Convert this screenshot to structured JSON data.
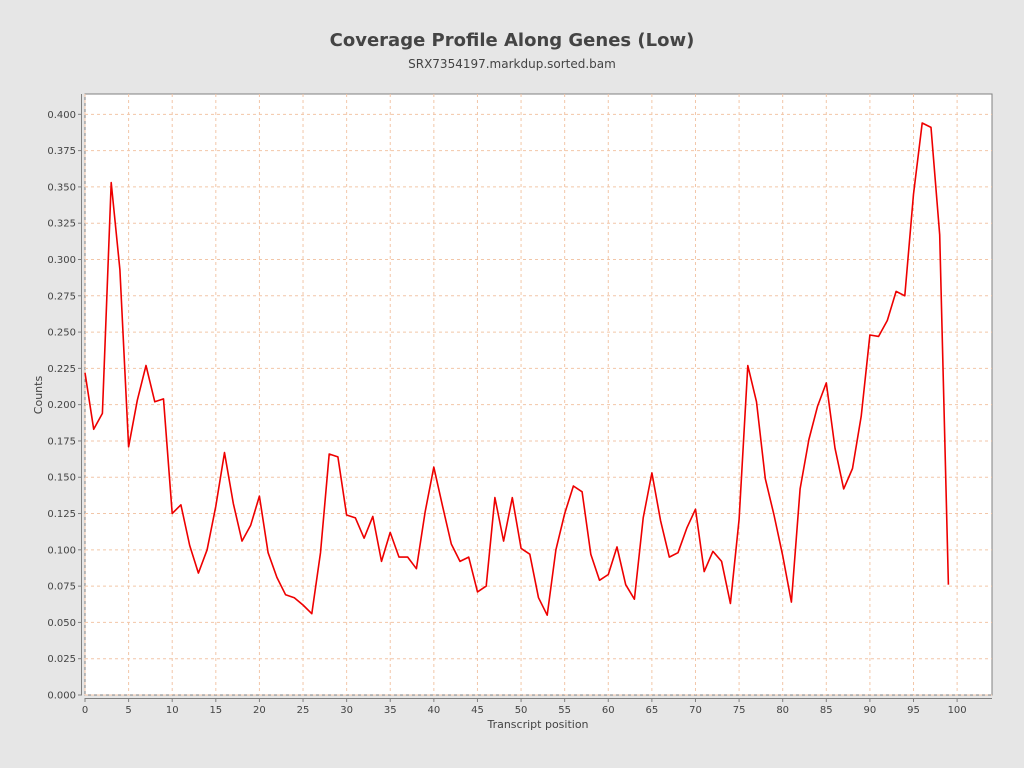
{
  "chart_data": {
    "type": "line",
    "title": "Coverage Profile Along Genes (Low)",
    "subtitle": "SRX7354197.markdup.sorted.bam",
    "xlabel": "Transcript position",
    "ylabel": "Counts",
    "xlim": [
      0,
      104
    ],
    "ylim": [
      0,
      0.414
    ],
    "xticks": [
      0,
      5,
      10,
      15,
      20,
      25,
      30,
      35,
      40,
      45,
      50,
      55,
      60,
      65,
      70,
      75,
      80,
      85,
      90,
      95,
      100
    ],
    "yticks": [
      "0.000",
      "0.025",
      "0.050",
      "0.075",
      "0.100",
      "0.125",
      "0.150",
      "0.175",
      "0.200",
      "0.225",
      "0.250",
      "0.275",
      "0.300",
      "0.325",
      "0.350",
      "0.375",
      "0.400"
    ],
    "grid": true,
    "colors": {
      "line": "#ee0000",
      "grid": "#f2c6a8",
      "plot_background": "#ffffff",
      "page_background": "#e6e6e6",
      "axis": "#808080",
      "text": "#444444"
    },
    "series": [
      {
        "x": [
          0,
          1,
          2,
          3,
          4,
          5,
          6,
          7,
          8,
          9,
          10,
          11,
          12,
          13,
          14,
          15,
          16,
          17,
          18,
          19,
          20,
          21,
          22,
          23,
          24,
          25,
          26,
          27,
          28,
          29,
          30,
          31,
          32,
          33,
          34,
          35,
          36,
          37,
          38,
          39,
          40,
          41,
          42,
          43,
          44,
          45,
          46,
          47,
          48,
          49,
          50,
          51,
          52,
          53,
          54,
          55,
          56,
          57,
          58,
          59,
          60,
          61,
          62,
          63,
          64,
          65,
          66,
          67,
          68,
          69,
          70,
          71,
          72,
          73,
          74,
          75,
          76,
          77,
          78,
          79,
          80,
          81,
          82,
          83,
          84,
          85,
          86,
          87,
          88,
          89,
          90,
          91,
          92,
          93,
          94,
          95,
          96,
          97,
          98,
          99
        ],
        "values": [
          0.222,
          0.183,
          0.194,
          0.353,
          0.293,
          0.171,
          0.203,
          0.227,
          0.202,
          0.204,
          0.125,
          0.131,
          0.103,
          0.084,
          0.1,
          0.13,
          0.167,
          0.132,
          0.106,
          0.117,
          0.137,
          0.098,
          0.081,
          0.069,
          0.067,
          0.062,
          0.056,
          0.098,
          0.166,
          0.164,
          0.124,
          0.122,
          0.108,
          0.123,
          0.092,
          0.112,
          0.095,
          0.095,
          0.087,
          0.126,
          0.157,
          0.13,
          0.104,
          0.092,
          0.095,
          0.071,
          0.075,
          0.136,
          0.106,
          0.136,
          0.101,
          0.097,
          0.067,
          0.055,
          0.1,
          0.125,
          0.144,
          0.14,
          0.097,
          0.079,
          0.083,
          0.102,
          0.076,
          0.066,
          0.122,
          0.153,
          0.12,
          0.095,
          0.098,
          0.115,
          0.128,
          0.085,
          0.099,
          0.092,
          0.063,
          0.121,
          0.227,
          0.202,
          0.149,
          0.124,
          0.096,
          0.064,
          0.142,
          0.176,
          0.199,
          0.215,
          0.17,
          0.142,
          0.156,
          0.192,
          0.248,
          0.247,
          0.258,
          0.278,
          0.275,
          0.345,
          0.394,
          0.391,
          0.317,
          0.076
        ]
      }
    ]
  }
}
